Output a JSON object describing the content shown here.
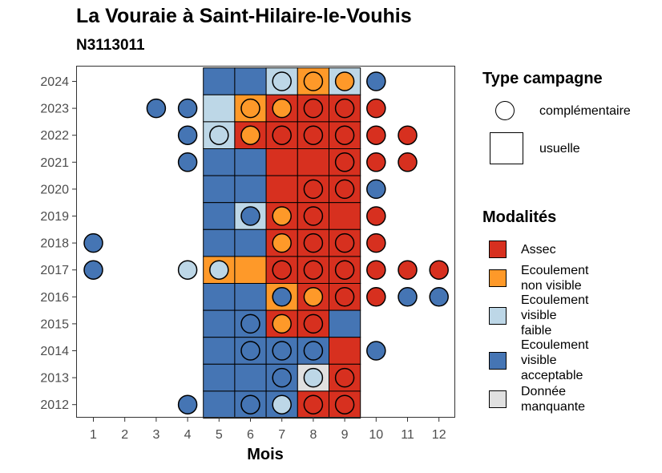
{
  "chart_data": {
    "type": "heatmap",
    "title": "La Vouraie à Saint-Hilaire-le-Vouhis",
    "subtitle": "N3113011",
    "xlabel": "Mois",
    "ylabel": "",
    "x_ticks": [
      "1",
      "2",
      "3",
      "4",
      "5",
      "6",
      "7",
      "8",
      "9",
      "10",
      "11",
      "12"
    ],
    "y_ticks": [
      "2012",
      "2013",
      "2014",
      "2015",
      "2016",
      "2017",
      "2018",
      "2019",
      "2020",
      "2021",
      "2022",
      "2023",
      "2024"
    ],
    "legend_type_title": "Type campagne",
    "legend_type": [
      {
        "key": "complementaire",
        "label": "complémentaire",
        "shape": "circle"
      },
      {
        "key": "usuelle",
        "label": "usuelle",
        "shape": "square"
      }
    ],
    "legend_mod_title": "Modalités",
    "modalites": [
      {
        "code": "A",
        "label": "Assec",
        "color": "#d7301f"
      },
      {
        "code": "N",
        "label": "Ecoulement\nnon visible",
        "color": "#fe9929"
      },
      {
        "code": "F",
        "label": "Ecoulement\nvisible\nfaible",
        "color": "#bdd7e7"
      },
      {
        "code": "V",
        "label": "Ecoulement\nvisible\nacceptable",
        "color": "#4575b4"
      },
      {
        "code": "M",
        "label": "Donnée\nmanquante",
        "color": "#e0e0e0"
      }
    ],
    "usuelle": [
      {
        "year": 2024,
        "values": {
          "5": "V",
          "6": "V",
          "7": "F",
          "8": "N",
          "9": "F"
        }
      },
      {
        "year": 2023,
        "values": {
          "5": "F",
          "6": "N",
          "7": "A",
          "8": "A",
          "9": "A"
        }
      },
      {
        "year": 2022,
        "values": {
          "5": "F",
          "6": "A",
          "7": "A",
          "8": "A",
          "9": "A"
        }
      },
      {
        "year": 2021,
        "values": {
          "5": "V",
          "6": "V",
          "7": "A",
          "8": "A",
          "9": "A"
        }
      },
      {
        "year": 2020,
        "values": {
          "5": "V",
          "6": "V",
          "7": "A",
          "8": "A",
          "9": "A"
        }
      },
      {
        "year": 2019,
        "values": {
          "5": "V",
          "6": "F",
          "7": "A",
          "8": "A",
          "9": "A"
        }
      },
      {
        "year": 2018,
        "values": {
          "5": "V",
          "6": "V",
          "7": "A",
          "8": "A",
          "9": "A"
        }
      },
      {
        "year": 2017,
        "values": {
          "5": "N",
          "6": "N",
          "7": "A",
          "8": "A",
          "9": "A"
        }
      },
      {
        "year": 2016,
        "values": {
          "5": "V",
          "6": "V",
          "7": "N",
          "8": "A",
          "9": "A"
        }
      },
      {
        "year": 2015,
        "values": {
          "5": "V",
          "6": "V",
          "7": "A",
          "8": "A",
          "9": "V"
        }
      },
      {
        "year": 2014,
        "values": {
          "5": "V",
          "6": "V",
          "7": "V",
          "8": "V",
          "9": "A"
        }
      },
      {
        "year": 2013,
        "values": {
          "5": "V",
          "6": "V",
          "7": "V",
          "8": "M",
          "9": "A"
        }
      },
      {
        "year": 2012,
        "values": {
          "5": "V",
          "6": "V",
          "7": "V",
          "8": "A",
          "9": "A"
        }
      }
    ],
    "complementaire": [
      {
        "year": 2024,
        "values": {
          "7": "F",
          "8": "N",
          "9": "N",
          "10": "V"
        }
      },
      {
        "year": 2023,
        "values": {
          "3": "V",
          "4": "V",
          "6": "N",
          "7": "N",
          "8": "A",
          "9": "A",
          "10": "A"
        }
      },
      {
        "year": 2022,
        "values": {
          "4": "V",
          "5": "F",
          "6": "N",
          "7": "A",
          "8": "A",
          "9": "A",
          "10": "A",
          "11": "A"
        }
      },
      {
        "year": 2021,
        "values": {
          "4": "V",
          "9": "A",
          "10": "A",
          "11": "A"
        }
      },
      {
        "year": 2020,
        "values": {
          "8": "A",
          "9": "A",
          "10": "V"
        }
      },
      {
        "year": 2019,
        "values": {
          "6": "V",
          "7": "N",
          "8": "A",
          "10": "A"
        }
      },
      {
        "year": 2018,
        "values": {
          "1": "V",
          "7": "N",
          "8": "A",
          "9": "A",
          "10": "A"
        }
      },
      {
        "year": 2017,
        "values": {
          "1": "V",
          "4": "F",
          "5": "F",
          "7": "A",
          "8": "A",
          "9": "A",
          "10": "A",
          "11": "A",
          "12": "A"
        }
      },
      {
        "year": 2016,
        "values": {
          "7": "V",
          "8": "N",
          "9": "A",
          "10": "A",
          "11": "V",
          "12": "V"
        }
      },
      {
        "year": 2015,
        "values": {
          "6": "V",
          "7": "N",
          "8": "A"
        }
      },
      {
        "year": 2014,
        "values": {
          "6": "V",
          "7": "V",
          "8": "V",
          "10": "V"
        }
      },
      {
        "year": 2013,
        "values": {
          "7": "V",
          "8": "F",
          "9": "A"
        }
      },
      {
        "year": 2012,
        "values": {
          "4": "V",
          "6": "V",
          "7": "F",
          "8": "A",
          "9": "A"
        }
      }
    ],
    "grid": false,
    "legend_position": "right"
  }
}
